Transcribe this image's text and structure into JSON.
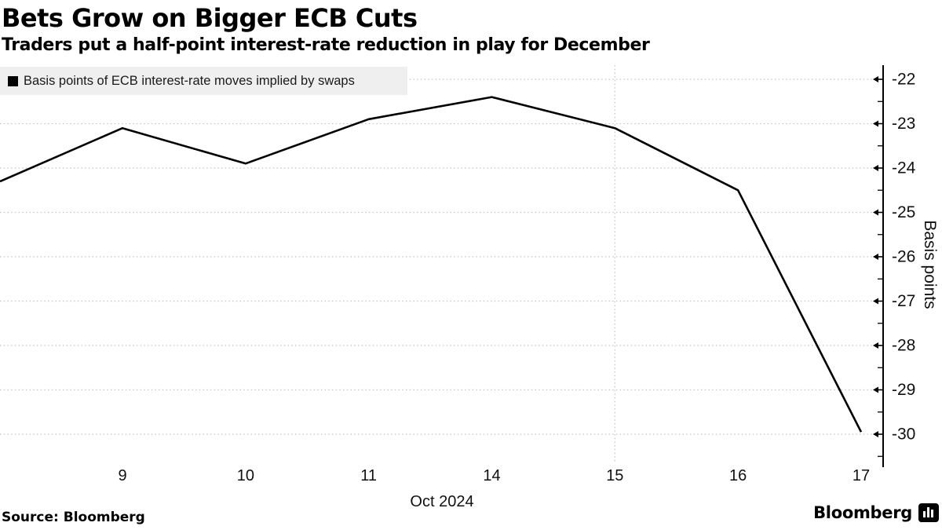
{
  "footer": {
    "source": "Source: Bloomberg",
    "brand": "Bloomberg"
  },
  "legend": {
    "marker": "black-square",
    "label": "Basis points of ECB interest-rate moves implied by swaps"
  },
  "chart_data": {
    "type": "line",
    "title": "Bets Grow on Bigger ECB Cuts",
    "subtitle": "Traders put a half-point interest-rate reduction in play for December",
    "xlabel": "Oct 2024",
    "ylabel": "Basis points",
    "x_tick_labels": [
      "9",
      "10",
      "11",
      "14",
      "15",
      "16",
      "17"
    ],
    "y_ticks": [
      -22,
      -23,
      -24,
      -25,
      -26,
      -27,
      -28,
      -29,
      -30
    ],
    "y_minor_ticks": [
      -22.5,
      -23.5,
      -24.5,
      -25.5,
      -26.5,
      -27.5,
      -28.5,
      -29.5,
      -30.5
    ],
    "ylim": [
      -30.6,
      -21.7
    ],
    "axis_side": "right",
    "legend_position": "top-left",
    "grid": {
      "horizontal": "dotted",
      "vertical_dotted_at_label": "15"
    },
    "line_color": "#000000",
    "grid_color": "#c4c4c4",
    "series": [
      {
        "name": "Basis points of ECB interest-rate moves implied by swaps",
        "color": "#000000",
        "points": [
          {
            "date": "8",
            "value": -24.3,
            "clipped_at_left_edge": true
          },
          {
            "date": "9",
            "value": -23.1
          },
          {
            "date": "10",
            "value": -23.9
          },
          {
            "date": "11",
            "value": -22.9
          },
          {
            "date": "14",
            "value": -22.4
          },
          {
            "date": "15",
            "value": -23.1
          },
          {
            "date": "16",
            "value": -24.5
          },
          {
            "date": "17",
            "value": -29.95
          }
        ]
      }
    ]
  }
}
